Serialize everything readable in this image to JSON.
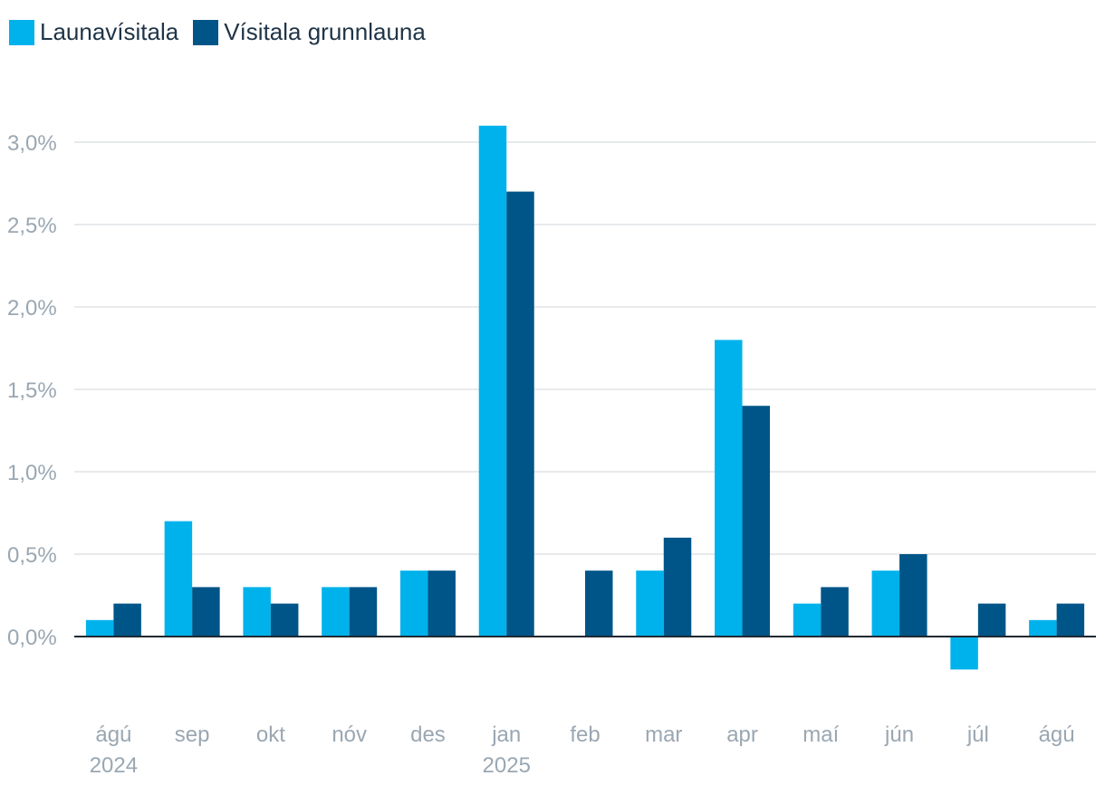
{
  "chart_data": {
    "type": "bar",
    "categories": [
      "ágú",
      "sep",
      "okt",
      "nóv",
      "des",
      "jan",
      "feb",
      "mar",
      "apr",
      "maí",
      "jún",
      "júl",
      "ágú"
    ],
    "category_sublabels": [
      "2024",
      "",
      "",
      "",
      "",
      "2025",
      "",
      "",
      "",
      "",
      "",
      "",
      ""
    ],
    "series": [
      {
        "name": "Launavísitala",
        "color": "#00b2ec",
        "values": [
          0.1,
          0.7,
          0.3,
          0.3,
          0.4,
          3.1,
          0.0,
          0.4,
          1.8,
          0.2,
          0.4,
          -0.2,
          0.1
        ]
      },
      {
        "name": "Vísitala grunnlauna",
        "color": "#005588",
        "values": [
          0.2,
          0.3,
          0.2,
          0.3,
          0.4,
          2.7,
          0.4,
          0.6,
          1.4,
          0.3,
          0.5,
          0.2,
          0.2
        ]
      }
    ],
    "yticks": [
      0.0,
      0.5,
      1.0,
      1.5,
      2.0,
      2.5,
      3.0
    ],
    "ytick_labels": [
      "0,0%",
      "0,5%",
      "1,0%",
      "1,5%",
      "2,0%",
      "2,5%",
      "3,0%"
    ],
    "ylim": [
      -0.4,
      3.2
    ],
    "grid": true,
    "legend_position": "top-left",
    "xlabel": "",
    "ylabel": "",
    "title": ""
  }
}
